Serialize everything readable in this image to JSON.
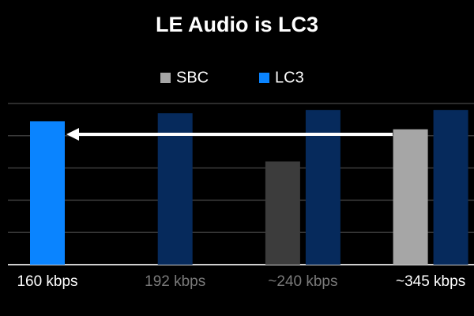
{
  "chart_data": {
    "type": "bar",
    "title": "LE Audio is LC3",
    "categories": [
      "160 kbps",
      "192 kbps",
      "~240 kbps",
      "~345 kbps"
    ],
    "category_colors": [
      "#ffffff",
      "#7a7a7a",
      "#7a7a7a",
      "#ffffff"
    ],
    "series": [
      {
        "name": "SBC",
        "color": "#a6a6a6",
        "values": [
          null,
          null,
          3.2,
          4.2
        ],
        "point_colors": [
          null,
          null,
          "#3c3c3c",
          "#a6a6a6"
        ]
      },
      {
        "name": "LC3",
        "color": "#0a84ff",
        "values": [
          4.45,
          4.7,
          4.8,
          4.8
        ],
        "point_colors": [
          "#0a84ff",
          "#062a5c",
          "#062a5c",
          "#062a5c"
        ]
      }
    ],
    "ylim": [
      0,
      5
    ],
    "yticks": [
      0,
      1,
      2,
      3,
      4,
      5
    ],
    "grid": true
  }
}
